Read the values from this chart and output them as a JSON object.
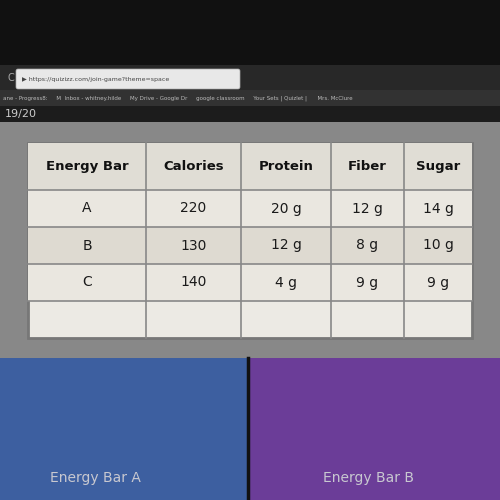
{
  "headers": [
    "Energy Bar",
    "Calories",
    "Protein",
    "Fiber",
    "Sugar"
  ],
  "rows": [
    [
      "A",
      "220",
      "20 g",
      "12 g",
      "14 g"
    ],
    [
      "B",
      "130",
      "12 g",
      "8 g",
      "10 g"
    ],
    [
      "C",
      "140",
      "4 g",
      "9 g",
      "9 g"
    ]
  ],
  "table_bg": "#eceae4",
  "header_bg": "#e0ddd5",
  "top_bg": "#111111",
  "browser_bar_bg": "#282828",
  "bookmarks_bar_bg": "#323232",
  "gray_area_bg": "#888888",
  "bottom_left_bg": "#3d5fa0",
  "bottom_right_bg": "#6b3d98",
  "bottom_left_label": "Energy Bar A",
  "bottom_right_label": "Energy Bar B",
  "label_color": "#c8c8d0",
  "border_color": "#999999",
  "text_color": "#1a1a1a",
  "header_text_color": "#111111",
  "url_text": "https://quizizz.com/join-game?theme=space",
  "bookmarks_text": "ane - Progress8:     M  Inbox - whitney.hilde     My Drive - Google Dr     google classroom     Your Sets | Quizlet |      Mrs. McClure",
  "score_text": "19/20",
  "tab_bar_bg": "#1e1e1e",
  "url_bar_bg": "#dddddd",
  "tab_text": "C"
}
